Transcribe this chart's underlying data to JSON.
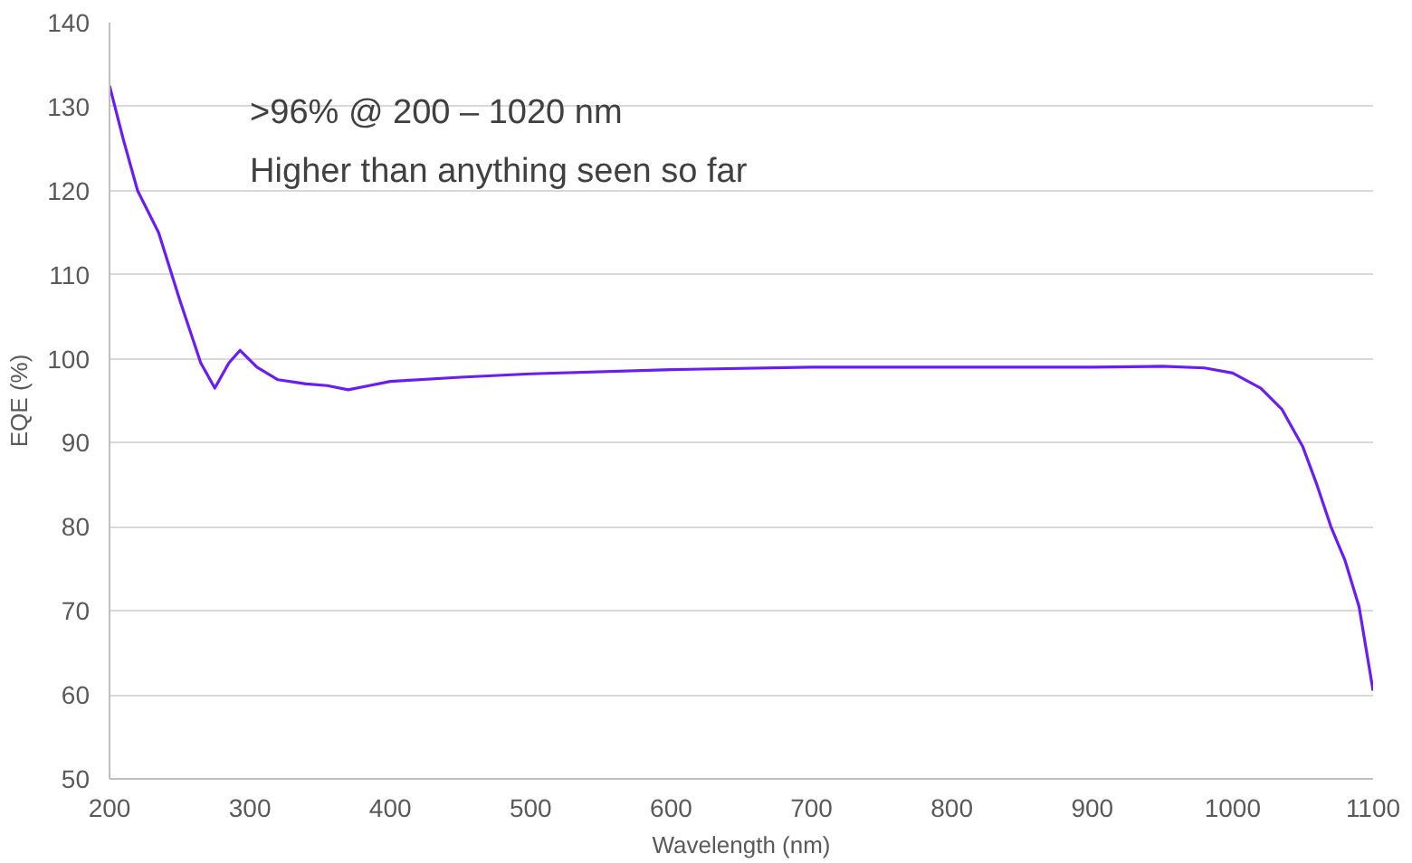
{
  "chart_data": {
    "type": "line",
    "xlabel": "Wavelength (nm)",
    "ylabel": "EQE (%)",
    "annotations": [
      ">96% @ 200 – 1020 nm",
      "Higher than anything seen so far"
    ],
    "xlim": [
      200,
      1100
    ],
    "xticks": [
      200,
      300,
      400,
      500,
      600,
      700,
      800,
      900,
      1000,
      1100
    ],
    "ylim": [
      50,
      140
    ],
    "yticks": [
      50,
      60,
      70,
      80,
      90,
      100,
      110,
      120,
      130,
      140
    ],
    "grid": "y",
    "marker": "none",
    "line_style": "solid",
    "series": [
      {
        "color": "#6a1cf6",
        "x": [
          200,
          210,
          220,
          235,
          250,
          265,
          275,
          285,
          293,
          305,
          320,
          340,
          355,
          370,
          385,
          400,
          450,
          500,
          600,
          700,
          800,
          900,
          950,
          980,
          1000,
          1020,
          1035,
          1050,
          1060,
          1070,
          1080,
          1090,
          1100
        ],
        "values": [
          132.5,
          126,
          120,
          115,
          107,
          99.5,
          96.5,
          99.5,
          101,
          99,
          97.5,
          97,
          96.8,
          96.3,
          96.8,
          97.3,
          97.8,
          98.2,
          98.7,
          99,
          99,
          99,
          99.1,
          98.9,
          98.3,
          96.5,
          94,
          89.5,
          85,
          80,
          76,
          70.5,
          60.5
        ]
      }
    ]
  }
}
